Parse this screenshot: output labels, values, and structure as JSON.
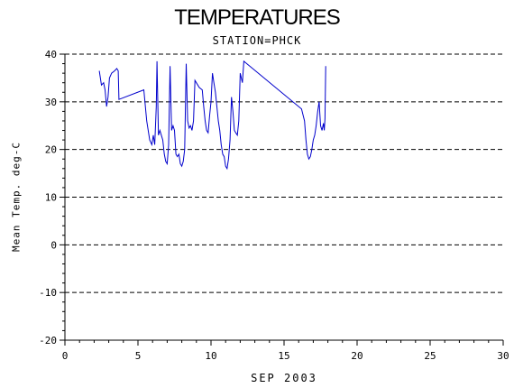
{
  "chart_data": {
    "type": "line",
    "title": "TEMPERATURES",
    "subtitle": "STATION=PHCK",
    "xlabel": "SEP 2003",
    "ylabel": "Mean Temp. deg-C",
    "xlim": [
      0,
      30
    ],
    "ylim": [
      -20,
      40
    ],
    "xticks": [
      0,
      5,
      10,
      15,
      20,
      25,
      30
    ],
    "yticks": [
      -20,
      -10,
      0,
      10,
      20,
      30,
      40
    ],
    "grid": "horizontal dashed at y ticks",
    "colors": {
      "line": "#0000cc",
      "axis": "#000000",
      "grid": "#000000"
    },
    "series": [
      {
        "values": [
          [
            2.35,
            36.5
          ],
          [
            2.5,
            33.5
          ],
          [
            2.65,
            34
          ],
          [
            2.75,
            32.5
          ],
          [
            2.85,
            29
          ],
          [
            2.95,
            31
          ],
          [
            3.05,
            35
          ],
          [
            3.2,
            36
          ],
          [
            3.4,
            36.5
          ],
          [
            3.55,
            37
          ],
          [
            3.65,
            36.5
          ],
          [
            3.7,
            30.5
          ],
          [
            5.4,
            32.5
          ],
          [
            5.6,
            26
          ],
          [
            5.8,
            22
          ],
          [
            5.95,
            21
          ],
          [
            6.05,
            23
          ],
          [
            6.15,
            21
          ],
          [
            6.25,
            29
          ],
          [
            6.3,
            38.5
          ],
          [
            6.4,
            23
          ],
          [
            6.5,
            24
          ],
          [
            6.6,
            23
          ],
          [
            6.7,
            22
          ],
          [
            6.8,
            19
          ],
          [
            6.9,
            17.5
          ],
          [
            7.0,
            17
          ],
          [
            7.1,
            21
          ],
          [
            7.2,
            37.5
          ],
          [
            7.3,
            24
          ],
          [
            7.4,
            25
          ],
          [
            7.5,
            24
          ],
          [
            7.6,
            19
          ],
          [
            7.7,
            18.5
          ],
          [
            7.8,
            19
          ],
          [
            7.9,
            17
          ],
          [
            8.0,
            16.5
          ],
          [
            8.1,
            17.5
          ],
          [
            8.2,
            20
          ],
          [
            8.3,
            38
          ],
          [
            8.4,
            26
          ],
          [
            8.5,
            24.5
          ],
          [
            8.6,
            25
          ],
          [
            8.7,
            24
          ],
          [
            8.8,
            26
          ],
          [
            8.9,
            34.5
          ],
          [
            9.2,
            33
          ],
          [
            9.4,
            32.5
          ],
          [
            9.5,
            29
          ],
          [
            9.6,
            26
          ],
          [
            9.7,
            24
          ],
          [
            9.8,
            23.5
          ],
          [
            9.9,
            27
          ],
          [
            10.0,
            30
          ],
          [
            10.1,
            36
          ],
          [
            10.2,
            34
          ],
          [
            10.3,
            32
          ],
          [
            10.4,
            29
          ],
          [
            10.5,
            26
          ],
          [
            10.6,
            24
          ],
          [
            10.7,
            21
          ],
          [
            10.8,
            19
          ],
          [
            10.9,
            18.5
          ],
          [
            11.0,
            16.5
          ],
          [
            11.1,
            16
          ],
          [
            11.2,
            18
          ],
          [
            11.3,
            22
          ],
          [
            11.4,
            31
          ],
          [
            11.5,
            28
          ],
          [
            11.6,
            24
          ],
          [
            11.7,
            23.5
          ],
          [
            11.8,
            23
          ],
          [
            11.9,
            26
          ],
          [
            12.0,
            36
          ],
          [
            12.15,
            34
          ],
          [
            12.25,
            38.5
          ],
          [
            16.2,
            28.5
          ],
          [
            16.4,
            26
          ],
          [
            16.5,
            22
          ],
          [
            16.6,
            19
          ],
          [
            16.7,
            18
          ],
          [
            16.8,
            18.5
          ],
          [
            16.9,
            20
          ],
          [
            17.0,
            22
          ],
          [
            17.1,
            23
          ],
          [
            17.2,
            25
          ],
          [
            17.3,
            28
          ],
          [
            17.4,
            30
          ],
          [
            17.5,
            25
          ],
          [
            17.6,
            24
          ],
          [
            17.7,
            25.5
          ],
          [
            17.75,
            24
          ],
          [
            17.8,
            26.5
          ],
          [
            17.85,
            37.5
          ]
        ]
      }
    ]
  }
}
